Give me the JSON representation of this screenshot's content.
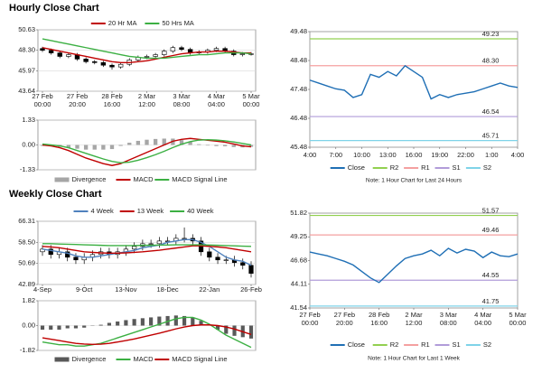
{
  "headings": [
    "Hourly Close Chart",
    "Weekly Close Chart"
  ],
  "chart_data": [
    {
      "type": "candlestick",
      "categories": [
        "27 Feb\n00:00",
        null,
        null,
        null,
        "27 Feb\n20:00",
        null,
        null,
        null,
        "28 Feb\n16:00",
        null,
        null,
        null,
        "2 Mar\n12:00",
        null,
        null,
        null,
        "3 Mar\n08:00",
        null,
        null,
        null,
        "4 Mar\n04:00",
        null,
        null,
        null,
        "5 Mar\n00:00"
      ],
      "open": [
        48.5,
        48.3,
        48.0,
        47.6,
        47.8,
        47.3,
        47.0,
        46.9,
        46.6,
        46.4,
        46.7,
        47.2,
        47.5,
        47.6,
        47.8,
        48.2,
        48.6,
        48.4,
        48.0,
        48.1,
        48.3,
        48.5,
        48.2,
        47.8,
        47.9
      ],
      "high": [
        48.7,
        48.5,
        48.2,
        48.0,
        48.0,
        47.5,
        47.2,
        47.1,
        46.8,
        46.9,
        47.4,
        47.7,
        47.8,
        48.0,
        48.4,
        48.8,
        48.8,
        48.6,
        48.3,
        48.5,
        48.7,
        48.7,
        48.4,
        48.1,
        48.1
      ],
      "low": [
        48.1,
        47.8,
        47.4,
        47.4,
        47.1,
        46.8,
        46.7,
        46.4,
        46.1,
        46.2,
        46.5,
        47.0,
        47.3,
        47.4,
        47.6,
        48.0,
        48.2,
        47.8,
        47.8,
        47.9,
        48.1,
        48.0,
        47.6,
        47.6,
        47.7
      ],
      "close": [
        48.3,
        48.0,
        47.6,
        47.8,
        47.3,
        47.0,
        46.9,
        46.6,
        46.4,
        46.7,
        47.2,
        47.5,
        47.6,
        47.8,
        48.2,
        48.6,
        48.4,
        48.0,
        48.1,
        48.3,
        48.5,
        48.2,
        47.8,
        47.9,
        47.9
      ],
      "series": [
        {
          "name": "20 Hr MA",
          "color": "#c00000",
          "values": [
            48.6,
            48.4,
            48.2,
            48.0,
            47.8,
            47.6,
            47.4,
            47.2,
            47.0,
            46.9,
            46.9,
            47.0,
            47.1,
            47.3,
            47.5,
            47.7,
            47.9,
            48.0,
            48.1,
            48.1,
            48.2,
            48.2,
            48.1,
            48.0,
            48.0
          ]
        },
        {
          "name": "50 Hrs MA",
          "color": "#3cb043",
          "values": [
            49.6,
            49.4,
            49.2,
            49.0,
            48.8,
            48.6,
            48.4,
            48.2,
            48.0,
            47.8,
            47.6,
            47.5,
            47.4,
            47.4,
            47.4,
            47.5,
            47.6,
            47.7,
            47.8,
            47.8,
            47.9,
            48.0,
            48.0,
            48.0,
            47.9
          ]
        }
      ],
      "ylim": [
        43.64,
        50.63
      ],
      "yticks": [
        50.63,
        {
          "value": 48.3,
          "label": "48.30"
        },
        45.97,
        43.64
      ],
      "grid": true,
      "legend": "top"
    },
    {
      "type": "macd",
      "series": [
        {
          "name": "Divergence",
          "type": "bar",
          "color": "#a6a6a6",
          "values": [
            -0.05,
            -0.05,
            -0.1,
            -0.15,
            -0.2,
            -0.25,
            -0.25,
            -0.25,
            -0.22,
            -0.05,
            0.12,
            0.22,
            0.28,
            0.32,
            0.34,
            0.34,
            0.26,
            0.17,
            0.04,
            -0.03,
            -0.06,
            -0.07,
            -0.11,
            -0.13,
            -0.1
          ]
        },
        {
          "name": "MACD",
          "type": "line",
          "color": "#c00000",
          "values": [
            0.0,
            -0.05,
            -0.15,
            -0.3,
            -0.5,
            -0.7,
            -0.85,
            -1.0,
            -1.1,
            -1.0,
            -0.8,
            -0.6,
            -0.4,
            -0.2,
            0.0,
            0.2,
            0.3,
            0.35,
            0.3,
            0.25,
            0.2,
            0.15,
            0.05,
            -0.05,
            -0.1
          ]
        },
        {
          "name": "MACD Signal Line",
          "type": "line",
          "color": "#3cb043",
          "values": [
            0.05,
            0.0,
            -0.05,
            -0.15,
            -0.3,
            -0.45,
            -0.6,
            -0.75,
            -0.88,
            -0.95,
            -0.92,
            -0.82,
            -0.68,
            -0.52,
            -0.34,
            -0.14,
            0.04,
            0.18,
            0.26,
            0.28,
            0.26,
            0.22,
            0.16,
            0.08,
            0.0
          ]
        }
      ],
      "ylim": [
        -1.33,
        1.33
      ],
      "yticks": [
        1.33,
        {
          "value": 0,
          "label": "0.00"
        },
        -1.33
      ],
      "grid": true,
      "legend": "bottom"
    },
    {
      "type": "line",
      "categories": [
        "4:00",
        null,
        null,
        "7:00",
        null,
        null,
        "10:00",
        null,
        null,
        "13:00",
        null,
        null,
        "16:00",
        null,
        null,
        "19:00",
        null,
        null,
        "22:00",
        null,
        null,
        "1:00",
        null,
        null,
        "4:00"
      ],
      "series": [
        {
          "name": "Close",
          "color": "#1f6fb5",
          "values": [
            47.8,
            47.7,
            47.6,
            47.5,
            47.45,
            47.2,
            47.3,
            48.0,
            47.9,
            48.1,
            47.95,
            48.3,
            48.1,
            47.9,
            47.15,
            47.3,
            47.2,
            47.3,
            47.35,
            47.4,
            47.5,
            47.6,
            47.7,
            47.6,
            47.55
          ]
        }
      ],
      "levels": [
        {
          "name": "R2",
          "value": 49.23,
          "color": "#92d050"
        },
        {
          "name": "R1",
          "value": 48.3,
          "label": "48.30",
          "color": "#f4a0a0"
        },
        {
          "name": "S1",
          "value": 46.54,
          "color": "#b19cd9"
        },
        {
          "name": "S2",
          "value": 45.71,
          "color": "#7fd3e8"
        }
      ],
      "ylim": [
        45.48,
        49.48
      ],
      "yticks": [
        49.48,
        48.48,
        47.48,
        46.48,
        45.48
      ],
      "grid": false,
      "legend": "bottom",
      "note": "Note: 1 Hour Chart for Last 24 Hours"
    },
    {
      "type": "candlestick",
      "categories": [
        "4-Sep",
        null,
        null,
        null,
        null,
        "9-Oct",
        null,
        null,
        null,
        null,
        "13-Nov",
        null,
        null,
        null,
        null,
        "18-Dec",
        null,
        null,
        null,
        null,
        "22-Jan",
        null,
        null,
        null,
        null,
        "26-Feb"
      ],
      "open": [
        55,
        56,
        54,
        55,
        53,
        52,
        53,
        54,
        55,
        54,
        55,
        56,
        57,
        58,
        58,
        59,
        59,
        60,
        60,
        59,
        55,
        53,
        52,
        52,
        51,
        50
      ],
      "high": [
        57.5,
        57.5,
        56.5,
        56.5,
        54.5,
        54.5,
        55.5,
        56.5,
        56.5,
        56.5,
        57.5,
        58.5,
        59.5,
        59.5,
        60.5,
        60.5,
        61.5,
        64,
        61.5,
        60.5,
        56.5,
        54.5,
        53.5,
        53.5,
        52.5,
        51.5
      ],
      "low": [
        53.5,
        52.5,
        52.5,
        51.5,
        50.5,
        50.5,
        51.5,
        52.5,
        52.5,
        52.5,
        53.5,
        54.5,
        55.5,
        56.5,
        56.5,
        57.5,
        57.5,
        58.5,
        57.5,
        53.5,
        51.5,
        50.5,
        50.5,
        49.5,
        48.5,
        45.5
      ],
      "close": [
        56,
        54,
        55,
        53,
        52,
        53,
        54,
        55,
        54,
        55,
        56,
        57,
        58,
        58,
        59,
        59,
        60,
        60,
        59,
        55,
        53,
        52,
        52,
        51,
        50,
        47
      ],
      "series": [
        {
          "name": "4 Week",
          "color": "#4f81bd",
          "values": [
            56,
            55.5,
            55,
            54.5,
            53.5,
            53,
            53,
            53.5,
            54,
            54.5,
            55,
            55.5,
            56.5,
            57,
            57.5,
            58.5,
            59,
            59.5,
            59.5,
            58.5,
            57,
            55,
            53,
            52,
            51.5,
            50
          ]
        },
        {
          "name": "13 Week",
          "color": "#c00000",
          "values": [
            57,
            56.8,
            56.5,
            56,
            55.5,
            55,
            54.8,
            54.6,
            54.5,
            54.5,
            54.6,
            54.8,
            55,
            55.3,
            55.6,
            56,
            56.4,
            56.8,
            57.2,
            57.2,
            57,
            56.8,
            56.5,
            56,
            55.5,
            55
          ]
        },
        {
          "name": "40 Week",
          "color": "#3cb043",
          "values": [
            58,
            58,
            57.9,
            57.8,
            57.7,
            57.6,
            57.5,
            57.4,
            57.3,
            57.3,
            57.3,
            57.3,
            57.4,
            57.4,
            57.5,
            57.5,
            57.6,
            57.6,
            57.6,
            57.6,
            57.5,
            57.4,
            57.3,
            57.2,
            57.1,
            57
          ]
        }
      ],
      "ylim": [
        42.89,
        66.31
      ],
      "yticks": [
        66.31,
        {
          "value": 58.5,
          "label": "58.50"
        },
        50.69,
        42.89
      ],
      "grid": true,
      "legend": "top"
    },
    {
      "type": "macd",
      "series": [
        {
          "name": "Divergence",
          "type": "bar",
          "color": "#595959",
          "values": [
            -0.3,
            -0.3,
            -0.3,
            -0.2,
            -0.2,
            -0.15,
            -0.02,
            0.06,
            0.2,
            0.3,
            0.4,
            0.48,
            0.54,
            0.6,
            0.66,
            0.7,
            0.74,
            0.7,
            0.6,
            0.35,
            0.05,
            -0.3,
            -0.6,
            -0.75,
            -0.85,
            -0.95
          ]
        },
        {
          "name": "MACD",
          "type": "line",
          "color": "#3cb043",
          "values": [
            -1.2,
            -1.3,
            -1.4,
            -1.4,
            -1.5,
            -1.5,
            -1.4,
            -1.3,
            -1.1,
            -0.9,
            -0.7,
            -0.5,
            -0.3,
            -0.1,
            0.1,
            0.3,
            0.5,
            0.6,
            0.6,
            0.4,
            0.1,
            -0.3,
            -0.7,
            -1.0,
            -1.3,
            -1.6
          ]
        },
        {
          "name": "MACD Signal Line",
          "type": "line",
          "color": "#c00000",
          "values": [
            -0.9,
            -1.0,
            -1.1,
            -1.2,
            -1.3,
            -1.35,
            -1.38,
            -1.36,
            -1.3,
            -1.2,
            -1.1,
            -0.98,
            -0.84,
            -0.7,
            -0.56,
            -0.4,
            -0.24,
            -0.1,
            0.0,
            0.05,
            0.05,
            0,
            -0.1,
            -0.25,
            -0.45,
            -0.65
          ]
        }
      ],
      "ylim": [
        -1.82,
        1.82
      ],
      "yticks": [
        1.82,
        {
          "value": 0,
          "label": "0.00"
        },
        -1.82
      ],
      "grid": true,
      "legend": "bottom"
    },
    {
      "type": "line",
      "categories": [
        "27 Feb\n00:00",
        null,
        null,
        null,
        "27 Feb\n20:00",
        null,
        null,
        null,
        "28 Feb\n16:00",
        null,
        null,
        null,
        "2 Mar\n12:00",
        null,
        null,
        null,
        "3 Mar\n08:00",
        null,
        null,
        null,
        "4 Mar\n04:00",
        null,
        null,
        null,
        "5 Mar\n00:00"
      ],
      "series": [
        {
          "name": "Close",
          "color": "#1f6fb5",
          "values": [
            47.6,
            47.4,
            47.2,
            46.9,
            46.6,
            46.2,
            45.5,
            44.8,
            44.3,
            45.2,
            46.1,
            46.9,
            47.2,
            47.4,
            47.8,
            47.2,
            48.0,
            47.5,
            47.9,
            47.7,
            47.0,
            47.6,
            47.2,
            47.1,
            47.4
          ]
        }
      ],
      "levels": [
        {
          "name": "R2",
          "value": 51.57,
          "color": "#92d050"
        },
        {
          "name": "R1",
          "value": 49.46,
          "color": "#f4a0a0"
        },
        {
          "name": "S1",
          "value": 44.55,
          "color": "#b19cd9"
        },
        {
          "name": "S2",
          "value": 41.75,
          "color": "#7fd3e8"
        }
      ],
      "ylim": [
        41.54,
        51.82
      ],
      "yticks": [
        51.82,
        49.25,
        46.68,
        44.11,
        41.54
      ],
      "grid": false,
      "legend": "bottom",
      "note": "Note: 1 Hour Chart for Last 1 Week"
    }
  ]
}
